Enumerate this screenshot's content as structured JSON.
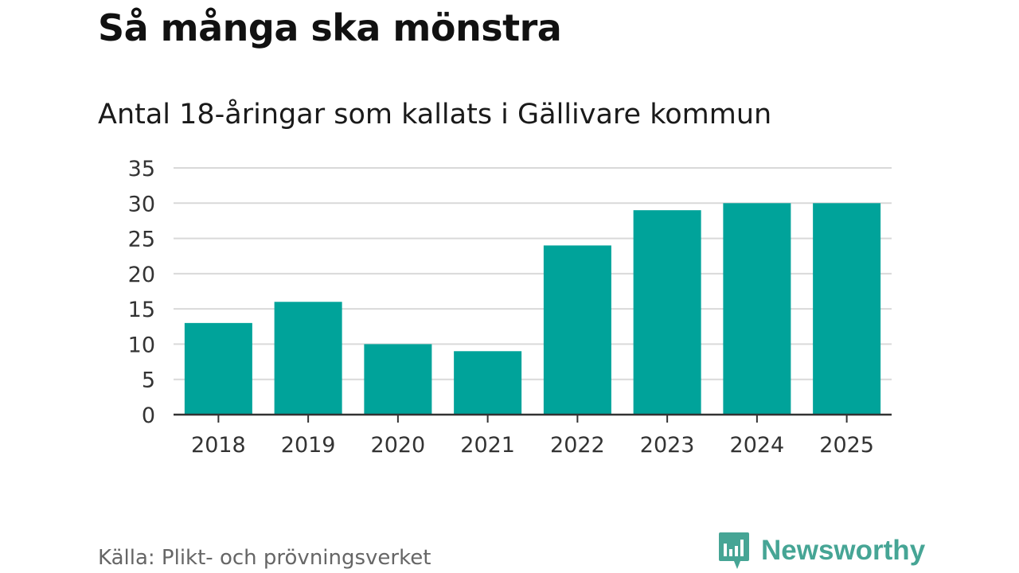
{
  "header": {
    "title": "Så många ska mönstra",
    "subtitle": "Antal 18-åringar som kallats i Gällivare kommun"
  },
  "footer": {
    "source": "Källa: Plikt- och prövningsverket",
    "brand": "Newsworthy"
  },
  "colors": {
    "bar": "#00a39a",
    "grid": "#d9d9d9",
    "axis": "#333333",
    "brand": "#46a595"
  },
  "chart_data": {
    "type": "bar",
    "title": "Antal 18-åringar som kallats i Gällivare kommun",
    "categories": [
      "2018",
      "2019",
      "2020",
      "2021",
      "2022",
      "2023",
      "2024",
      "2025"
    ],
    "values": [
      13,
      16,
      10,
      9,
      24,
      29,
      30,
      30
    ],
    "ylim": [
      0,
      35
    ],
    "yticks": [
      0,
      5,
      10,
      15,
      20,
      25,
      30,
      35
    ],
    "grid": true,
    "legend": "none"
  }
}
